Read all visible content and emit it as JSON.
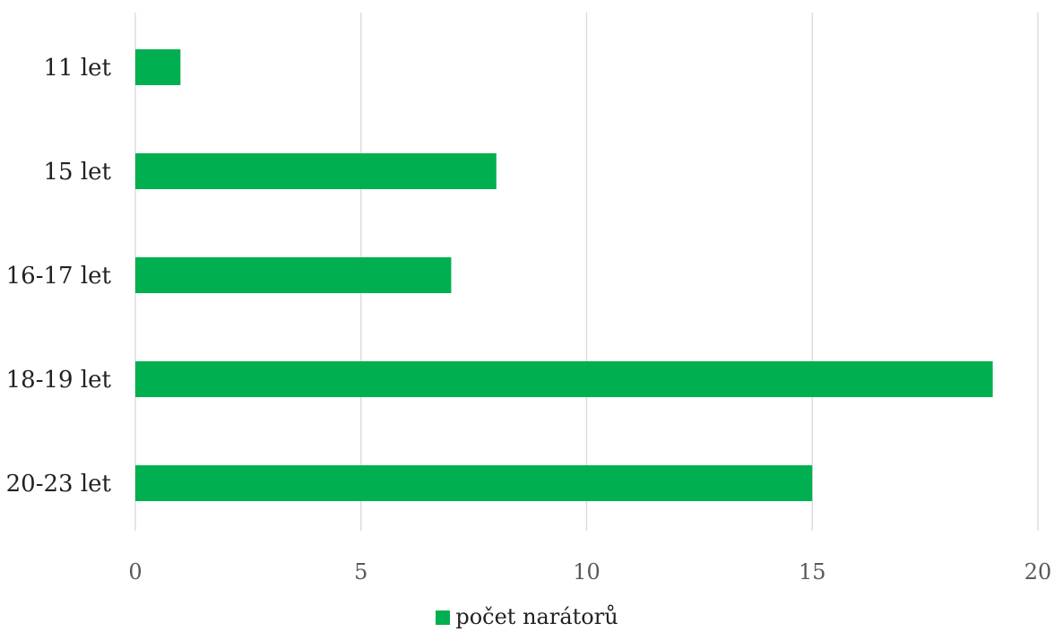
{
  "chart_data": {
    "type": "bar",
    "orientation": "horizontal",
    "categories": [
      "11 let",
      "15 let",
      "16-17 let",
      "18-19 let",
      "20-23 let"
    ],
    "series": [
      {
        "name": "počet narátorů",
        "values": [
          1,
          8,
          7,
          19,
          15
        ],
        "color": "#00b050"
      }
    ],
    "xlim": [
      0,
      20
    ],
    "xticks": [
      "0",
      "5",
      "10",
      "15",
      "20"
    ],
    "grid": "vertical",
    "legend_position": "bottom-center"
  }
}
